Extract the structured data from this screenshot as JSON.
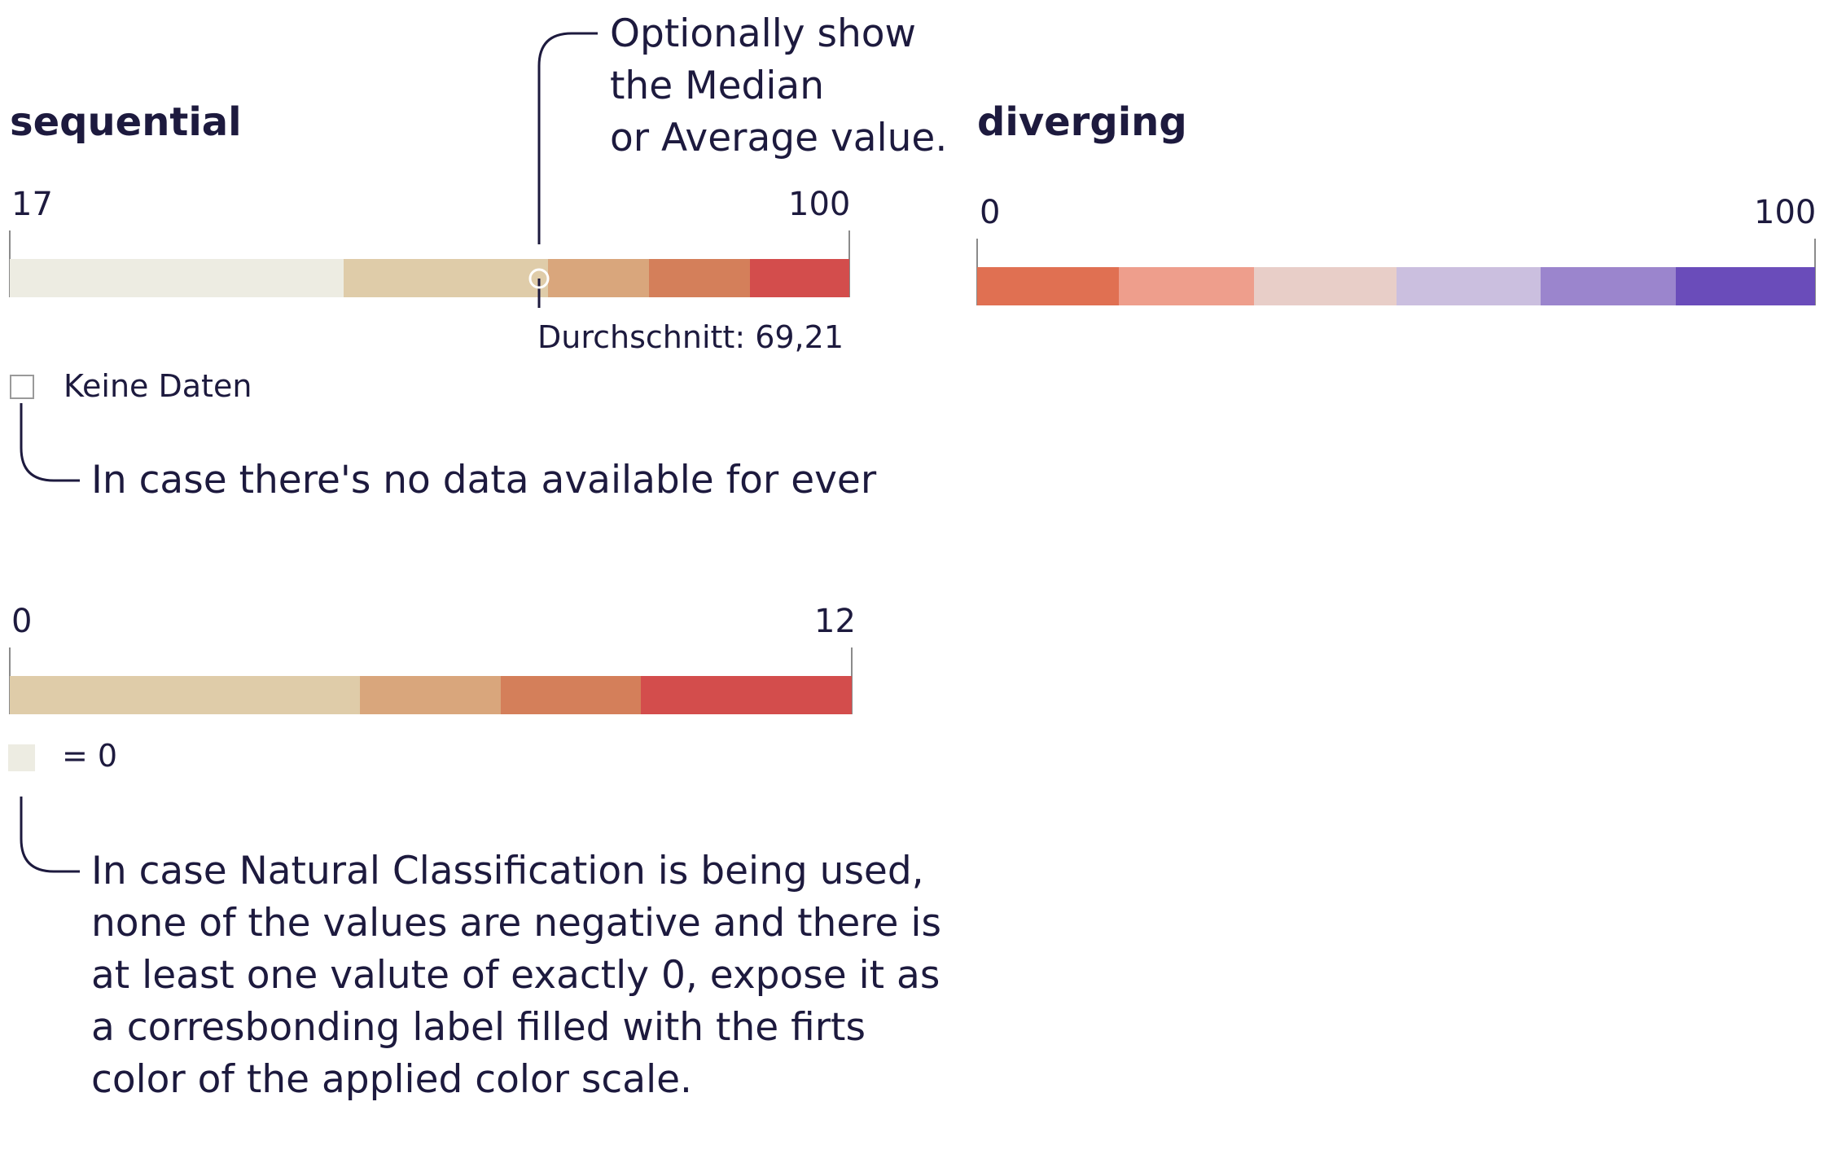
{
  "sequential": {
    "title": "sequential",
    "min_label": "17",
    "max_label": "100",
    "colors": [
      "#edece2",
      "#dfcca9",
      "#d9a67c",
      "#d47f5a",
      "#d34d4c"
    ],
    "average_label": "Durchschnitt: 69,21",
    "no_data_label": "Keine Daten",
    "median_annotation": [
      "Optionally show",
      "the Median",
      "or Average value."
    ],
    "no_data_annotation": "In case there's no data available for ever"
  },
  "diverging": {
    "title": "diverging",
    "min_label": "0",
    "max_label": "100",
    "colors": [
      "#e07052",
      "#ee9e8c",
      "#e8cec8",
      "#cbbfdf",
      "#9b85cd",
      "#6a4cba"
    ]
  },
  "natural": {
    "min_label": "0",
    "max_label": "12",
    "colors": [
      "#dfcca9",
      "#d9a67c",
      "#d47f5a",
      "#d34d4c"
    ],
    "zero_label": "= 0",
    "zero_color": "#edece2",
    "annotation": [
      "In case Natural Classification is being used,",
      "none of the values are negative and there is",
      "at least one valute of exactly 0, expose it as",
      "a corresbonding label filled with the firts",
      "color of the applied color scale."
    ]
  }
}
